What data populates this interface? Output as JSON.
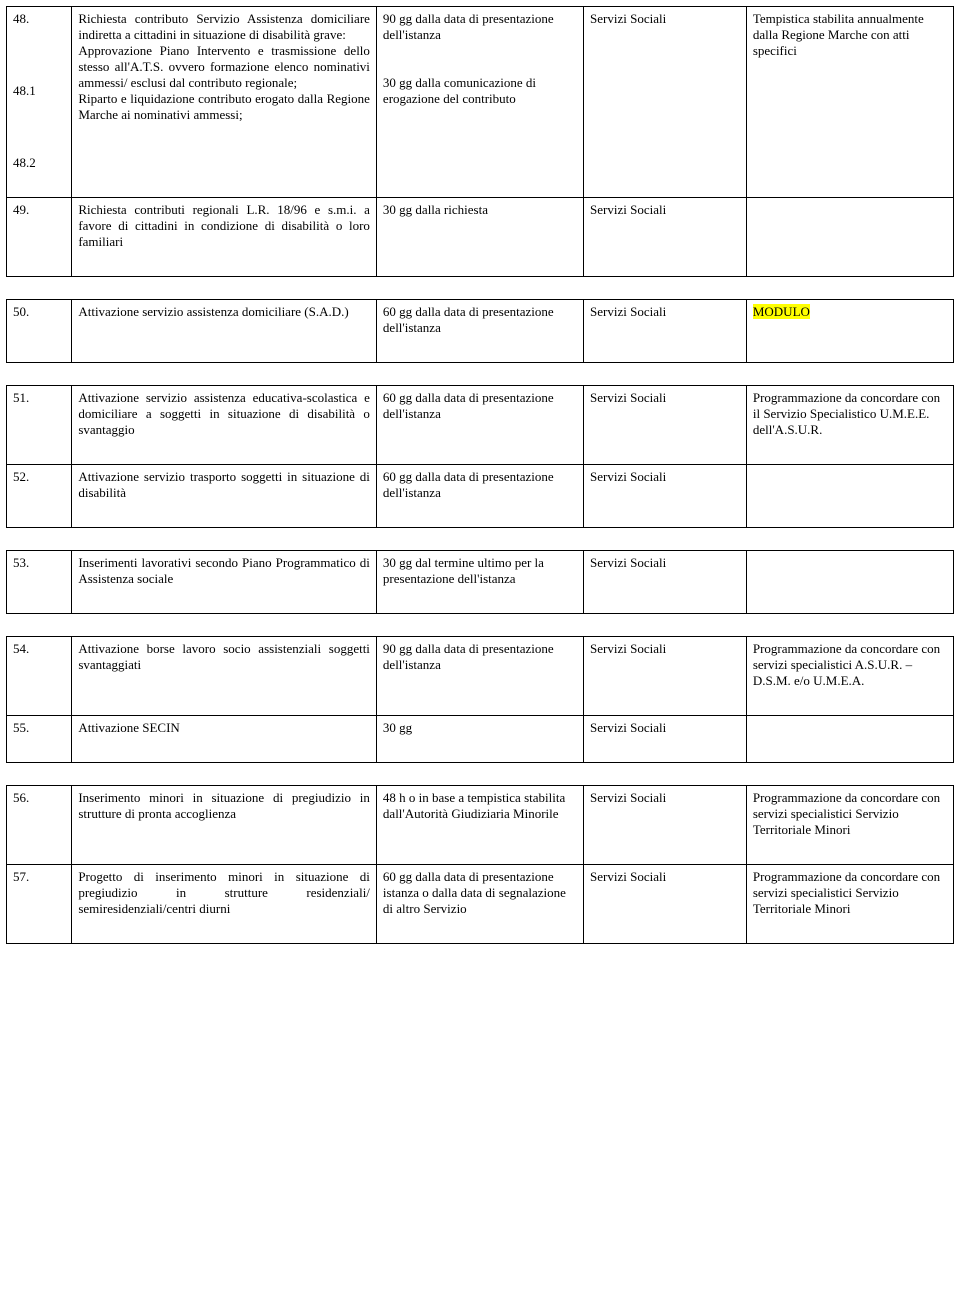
{
  "tables": [
    {
      "rows": [
        {
          "num": "48.\n\n48.1\n\n48.2",
          "desc": "Richiesta contributo Servizio Assistenza domiciliare indiretta a cittadini in situazione di disabilità grave:\nApprovazione Piano Intervento e trasmissione dello stesso all'A.T.S. ovvero formazione elenco nominativi ammessi/ esclusi dal contributo regionale;\nRiparto e liquidazione contributo erogato dalla Regione Marche ai nominativi ammessi;",
          "time": "90 gg dalla data di presentazione dell'istanza\n\n\n30 gg dalla comunicazione di erogazione del contributo",
          "dept": "Servizi Sociali",
          "notes": "Tempistica stabilita annualmente dalla Regione Marche con atti specifici"
        },
        {
          "num": "49.",
          "desc": "Richiesta contributi regionali L.R. 18/96 e s.m.i. a favore di cittadini in condizione di disabilità o loro familiari",
          "time": "30 gg dalla richiesta",
          "dept": "Servizi Sociali",
          "notes": ""
        }
      ]
    },
    {
      "rows": [
        {
          "num": "50.",
          "desc": "Attivazione servizio assistenza domiciliare (S.A.D.)",
          "time": "60 gg dalla data di presentazione dell'istanza",
          "dept": "Servizi Sociali",
          "notes": "MODULO",
          "notes_hl": true
        }
      ]
    },
    {
      "rows": [
        {
          "num": "51.",
          "desc": "Attivazione servizio assistenza educativa-scolastica e domiciliare a soggetti in situazione di disabilità o svantaggio",
          "time": "60 gg dalla data di presentazione dell'istanza",
          "dept": "Servizi Sociali",
          "notes": "Programmazione da concordare con il Servizio Specialistico U.M.E.E. dell'A.S.U.R."
        },
        {
          "num": "52.",
          "desc": "Attivazione servizio trasporto soggetti in situazione di disabilità",
          "time": "60 gg dalla data di presentazione dell'istanza",
          "dept": "Servizi Sociali",
          "notes": ""
        }
      ]
    },
    {
      "rows": [
        {
          "num": "53.",
          "desc": "Inserimenti lavorativi secondo Piano Programmatico di Assistenza sociale",
          "time": "30 gg dal termine ultimo per la presentazione dell'istanza",
          "dept": "Servizi Sociali",
          "notes": ""
        }
      ]
    },
    {
      "rows": [
        {
          "num": "54.",
          "desc": "Attivazione borse lavoro socio assistenziali soggetti svantaggiati",
          "time": "90 gg dalla data di presentazione dell'istanza",
          "dept": "Servizi Sociali",
          "notes": "Programmazione da concordare con servizi specialistici A.S.U.R. – D.S.M. e/o U.M.E.A."
        },
        {
          "num": "55.",
          "desc": "Attivazione SECIN",
          "time": "30 gg",
          "dept": "Servizi Sociali",
          "notes": ""
        }
      ]
    },
    {
      "rows": [
        {
          "num": "56.",
          "desc": "Inserimento minori in situazione di pregiudizio in strutture di pronta accoglienza",
          "time": "48 h o in base a tempistica stabilita dall'Autorità Giudiziaria Minorile",
          "dept": "Servizi Sociali",
          "notes": "Programmazione da concordare con servizi specialistici Servizio Territoriale Minori"
        },
        {
          "num": "57.",
          "desc": "Progetto di inserimento minori in situazione di pregiudizio in strutture residenziali/ semiresidenziali/centri diurni",
          "time": "60 gg dalla data di presentazione istanza o dalla data di segnalazione di altro Servizio",
          "dept": "Servizi Sociali",
          "notes": "Programmazione da concordare con servizi specialistici Servizio Territoriale Minori"
        }
      ]
    }
  ]
}
